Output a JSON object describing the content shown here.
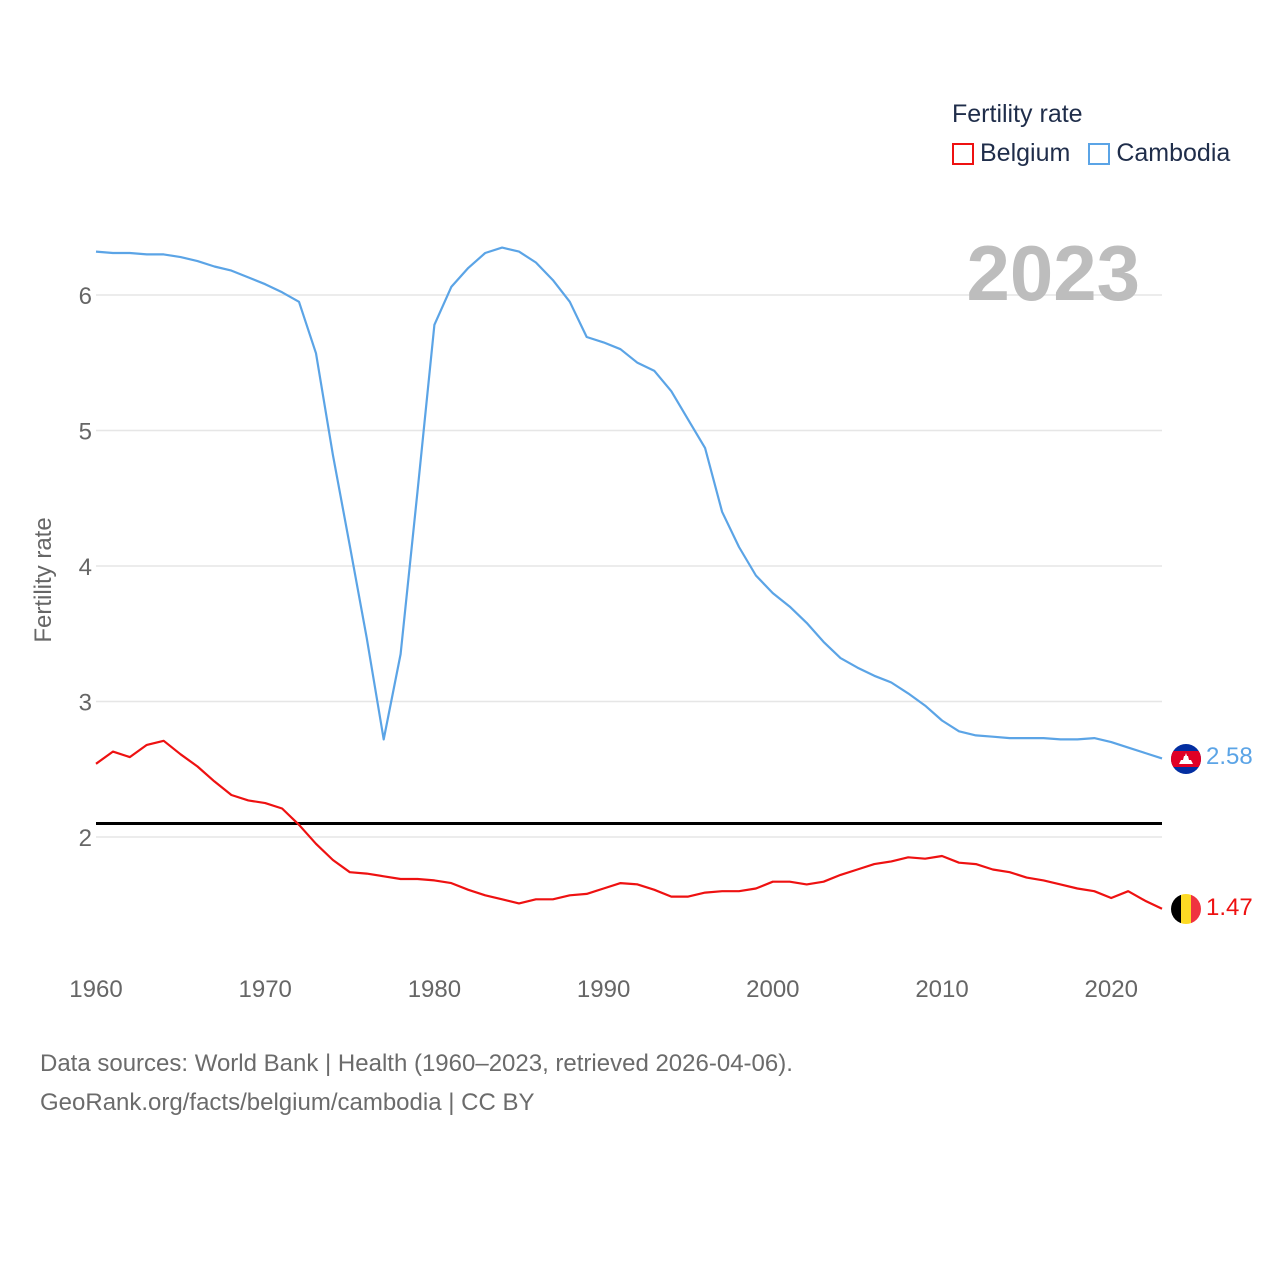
{
  "legend": {
    "title": "Fertility rate",
    "items": [
      {
        "name": "Belgium",
        "color": "#ee1111"
      },
      {
        "name": "Cambodia",
        "color": "#5ba4e6"
      }
    ]
  },
  "year_display": "2023",
  "footer": {
    "line1": "Data sources: World Bank | Health (1960–2023, retrieved 2026-04-06).",
    "line2": "GeoRank.org/facts/belgium/cambodia | CC BY"
  },
  "chart_data": {
    "type": "line",
    "title": "Fertility rate",
    "xlabel": "",
    "ylabel": "Fertility rate",
    "xlim": [
      1960,
      2023
    ],
    "ylim": [
      1.33,
      6.49
    ],
    "x_ticks": [
      1960,
      1970,
      1980,
      1990,
      2000,
      2010,
      2020
    ],
    "y_ticks": [
      2,
      3,
      4,
      5,
      6
    ],
    "grid": true,
    "reference_line": {
      "y": 2.1,
      "color": "#000000"
    },
    "x": [
      1960,
      1961,
      1962,
      1963,
      1964,
      1965,
      1966,
      1967,
      1968,
      1969,
      1970,
      1971,
      1972,
      1973,
      1974,
      1975,
      1976,
      1977,
      1978,
      1979,
      1980,
      1981,
      1982,
      1983,
      1984,
      1985,
      1986,
      1987,
      1988,
      1989,
      1990,
      1991,
      1992,
      1993,
      1994,
      1995,
      1996,
      1997,
      1998,
      1999,
      2000,
      2001,
      2002,
      2003,
      2004,
      2005,
      2006,
      2007,
      2008,
      2009,
      2010,
      2011,
      2012,
      2013,
      2014,
      2015,
      2016,
      2017,
      2018,
      2019,
      2020,
      2021,
      2022,
      2023
    ],
    "series": [
      {
        "name": "Belgium",
        "color": "#ee1111",
        "end_label": "1.47",
        "values": [
          2.54,
          2.63,
          2.59,
          2.68,
          2.71,
          2.61,
          2.52,
          2.41,
          2.31,
          2.27,
          2.25,
          2.21,
          2.09,
          1.95,
          1.83,
          1.74,
          1.73,
          1.71,
          1.69,
          1.69,
          1.68,
          1.66,
          1.61,
          1.57,
          1.54,
          1.51,
          1.54,
          1.54,
          1.57,
          1.58,
          1.62,
          1.66,
          1.65,
          1.61,
          1.56,
          1.56,
          1.59,
          1.6,
          1.6,
          1.62,
          1.67,
          1.67,
          1.65,
          1.67,
          1.72,
          1.76,
          1.8,
          1.82,
          1.85,
          1.84,
          1.86,
          1.81,
          1.8,
          1.76,
          1.74,
          1.7,
          1.68,
          1.65,
          1.62,
          1.6,
          1.55,
          1.6,
          1.53,
          1.47
        ]
      },
      {
        "name": "Cambodia",
        "color": "#5ba4e6",
        "end_label": "2.58",
        "values": [
          6.32,
          6.31,
          6.31,
          6.3,
          6.3,
          6.28,
          6.25,
          6.21,
          6.18,
          6.13,
          6.08,
          6.02,
          5.95,
          5.57,
          4.82,
          4.15,
          3.47,
          2.72,
          3.35,
          4.55,
          5.78,
          6.06,
          6.2,
          6.31,
          6.35,
          6.32,
          6.24,
          6.11,
          5.95,
          5.69,
          5.65,
          5.6,
          5.5,
          5.44,
          5.29,
          5.08,
          4.87,
          4.4,
          4.14,
          3.93,
          3.8,
          3.7,
          3.58,
          3.44,
          3.32,
          3.25,
          3.19,
          3.14,
          3.06,
          2.97,
          2.86,
          2.78,
          2.75,
          2.74,
          2.73,
          2.73,
          2.73,
          2.72,
          2.72,
          2.73,
          2.7,
          2.66,
          2.62,
          2.58
        ]
      }
    ]
  }
}
